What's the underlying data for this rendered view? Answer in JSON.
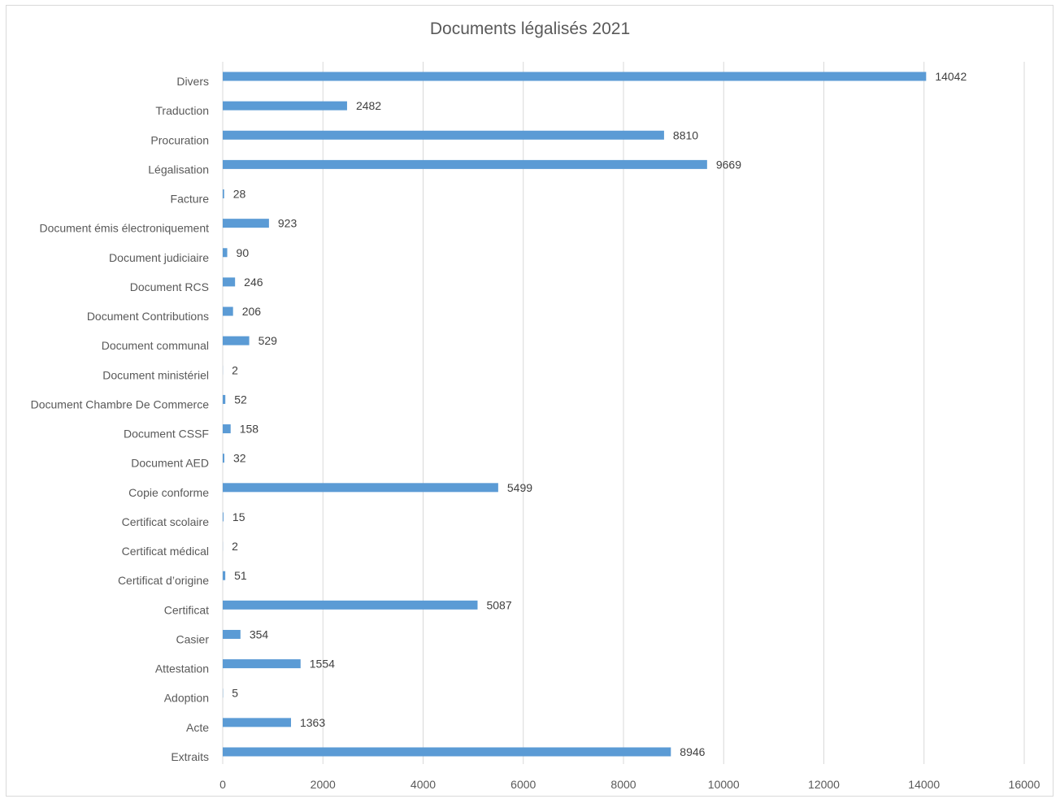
{
  "chart_data": {
    "type": "bar",
    "orientation": "horizontal",
    "title": "Documents légalisés 2021",
    "xlabel": "",
    "ylabel": "",
    "xlim": [
      0,
      16000
    ],
    "x_ticks": [
      0,
      2000,
      4000,
      6000,
      8000,
      10000,
      12000,
      14000,
      16000
    ],
    "grid": true,
    "legend": "none",
    "bar_color": "#5b9bd5",
    "categories": [
      "Divers",
      "Traduction",
      "Procuration",
      "Légalisation",
      "Facture",
      "Document émis électroniquement",
      "Document judiciaire",
      "Document RCS",
      "Document Contributions",
      "Document communal",
      "Document ministériel",
      "Document Chambre De Commerce",
      "Document CSSF",
      "Document AED",
      "Copie conforme",
      "Certificat scolaire",
      "Certificat médical",
      "Certificat d’origine",
      "Certificat",
      "Casier",
      "Attestation",
      "Adoption",
      "Acte",
      "Extraits"
    ],
    "values": [
      14042,
      2482,
      8810,
      9669,
      28,
      923,
      90,
      246,
      206,
      529,
      2,
      52,
      158,
      32,
      5499,
      15,
      2,
      51,
      5087,
      354,
      1554,
      5,
      1363,
      8946
    ]
  }
}
